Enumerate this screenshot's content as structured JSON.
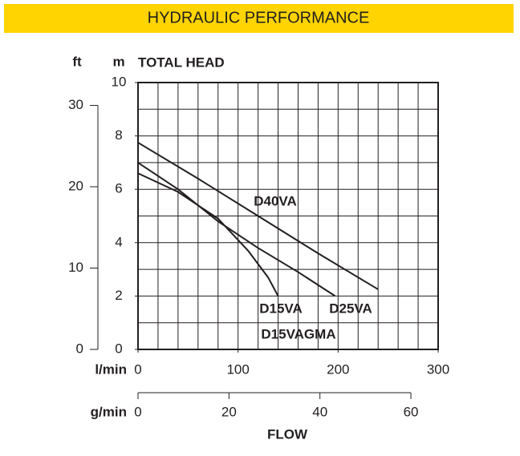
{
  "chart_data": {
    "type": "line",
    "title": "HYDRAULIC PERFORMANCE",
    "y_label": "TOTAL HEAD",
    "y_unit": "m",
    "y2_unit": "ft",
    "x_unit": "l/min",
    "x2_unit": "g/min",
    "x_label": "FLOW",
    "xlim": [
      0,
      300
    ],
    "xticks": [
      0,
      100,
      200,
      300
    ],
    "x2lim": [
      0,
      65.99
    ],
    "x2ticks": [
      0,
      20,
      40,
      60
    ],
    "ylim": [
      0,
      10
    ],
    "yticks": [
      0,
      2,
      4,
      6,
      8,
      10
    ],
    "y2lim": [
      0,
      32.81
    ],
    "y2ticks": [
      0,
      10,
      20,
      30
    ],
    "grid": true,
    "xgrid_step": 20,
    "ygrid_step": 1,
    "series": [
      {
        "name": "D40VA",
        "color": "#231f20",
        "x": [
          0,
          60,
          120,
          180,
          240
        ],
        "values": [
          7.75,
          6.4,
          5.0,
          3.6,
          2.25
        ]
      },
      {
        "name": "D25VA",
        "color": "#231f20",
        "x": [
          0,
          40,
          80,
          120,
          160,
          197
        ],
        "values": [
          7.0,
          6.0,
          4.8,
          3.8,
          2.9,
          2.0
        ]
      },
      {
        "name": "D15VA",
        "color": "#231f20",
        "x": [
          0,
          40,
          80,
          110,
          130,
          140
        ],
        "values": [
          6.6,
          5.9,
          4.9,
          3.7,
          2.7,
          2.0
        ]
      }
    ],
    "annotations": [
      "D15VAGMA"
    ]
  }
}
